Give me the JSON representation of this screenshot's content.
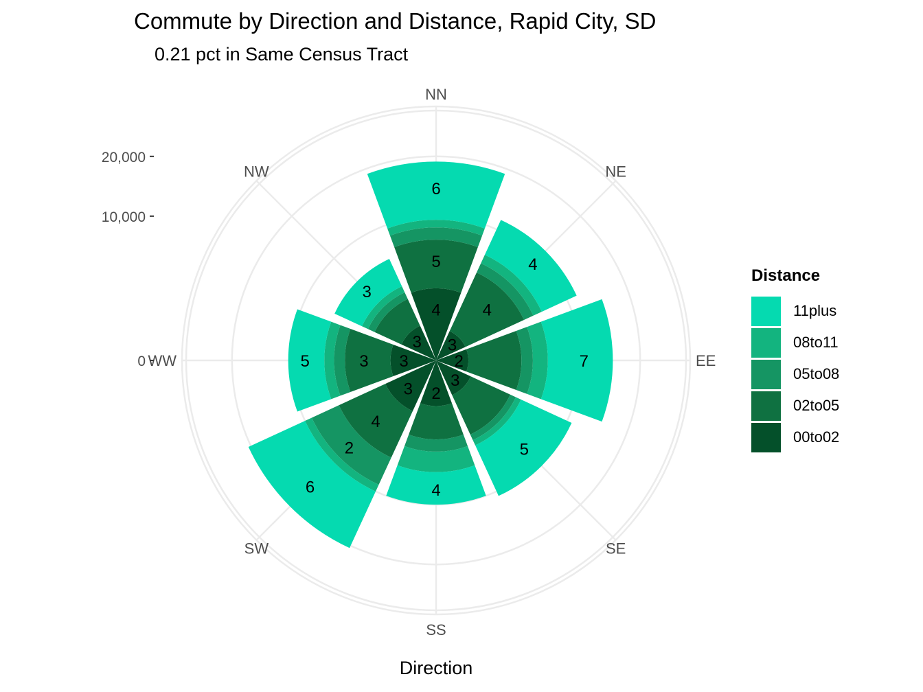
{
  "chart_data": {
    "type": "bar",
    "coordinates": "polar",
    "stacked": true,
    "title": "Commute by Direction and Distance, Rapid City, SD",
    "subtitle": "0.21 pct in Same Census Tract",
    "xlabel": "Direction",
    "ylabel": "",
    "categories": [
      "NN",
      "NE",
      "EE",
      "SE",
      "SS",
      "SW",
      "WW",
      "NW"
    ],
    "y_ticks": [
      {
        "value": 0,
        "label": "0"
      },
      {
        "value": 10000,
        "label": "10,000"
      },
      {
        "value": 20000,
        "label": "20,000"
      }
    ],
    "ylim": [
      0,
      31000
    ],
    "grid": true,
    "legend": {
      "title": "Distance",
      "position": "right"
    },
    "series": [
      {
        "name": "00to02",
        "color": "#04502a",
        "values": [
          2500,
          500,
          500,
          700,
          1000,
          1500,
          1000,
          700
        ],
        "labels": [
          "4",
          "3",
          "2",
          "3",
          "2",
          "3",
          "3",
          "3"
        ]
      },
      {
        "name": "02to05",
        "color": "#0f7141",
        "values": [
          4500,
          4000,
          3000,
          2500,
          2000,
          4000,
          3000,
          1500
        ],
        "labels": [
          "5",
          "4",
          "",
          "",
          "",
          "4",
          "3",
          ""
        ]
      },
      {
        "name": "05to08",
        "color": "#159563",
        "values": [
          1500,
          1000,
          1000,
          500,
          1000,
          3500,
          1000,
          500
        ],
        "labels": [
          "",
          "",
          "",
          "",
          "",
          "2",
          "",
          ""
        ]
      },
      {
        "name": "08to11",
        "color": "#13b47f",
        "values": [
          1000,
          1000,
          1500,
          500,
          2000,
          1000,
          1000,
          500
        ],
        "labels": [
          "",
          "",
          "",
          "",
          "",
          "",
          "",
          ""
        ]
      },
      {
        "name": "11plus",
        "color": "#05dab0",
        "values": [
          9500,
          5000,
          9000,
          6500,
          4000,
          10500,
          4500,
          2800
        ],
        "labels": [
          "6",
          "4",
          "7",
          "5",
          "4",
          "6",
          "5",
          "3"
        ]
      }
    ]
  }
}
